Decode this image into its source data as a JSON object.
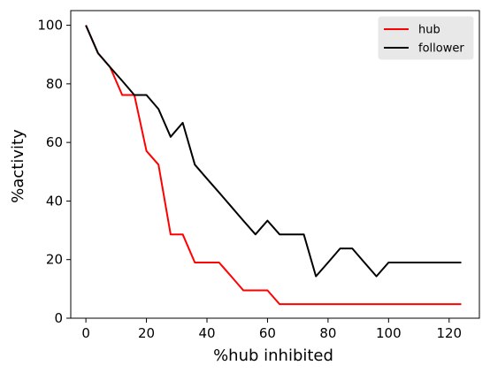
{
  "chart_data": {
    "type": "line",
    "title": "",
    "xlabel": "%hub inhibited",
    "ylabel": "%activity",
    "xlim": [
      -5,
      130
    ],
    "ylim": [
      0,
      105
    ],
    "xticks": [
      0,
      20,
      40,
      60,
      80,
      100,
      120
    ],
    "yticks": [
      0,
      20,
      40,
      60,
      80,
      100
    ],
    "legend_position": "top-right",
    "grid": false,
    "series": [
      {
        "name": "hub",
        "color": "#ff0000",
        "x": [
          0,
          4,
          8,
          12,
          16,
          20,
          24,
          28,
          32,
          36,
          40,
          44,
          48,
          52,
          56,
          60,
          64,
          68,
          72,
          76,
          80,
          84,
          88,
          92,
          96,
          100,
          104,
          108,
          112,
          116,
          120,
          124
        ],
        "y": [
          100,
          90.5,
          85.7,
          76.2,
          76.2,
          57.1,
          52.4,
          28.6,
          28.6,
          19,
          19,
          19,
          14.3,
          9.5,
          9.5,
          9.5,
          4.8,
          4.8,
          4.8,
          4.8,
          4.8,
          4.8,
          4.8,
          4.8,
          4.8,
          4.8,
          4.8,
          4.8,
          4.8,
          4.8,
          4.8,
          4.8
        ]
      },
      {
        "name": "follower",
        "color": "#000000",
        "x": [
          0,
          4,
          8,
          12,
          16,
          20,
          24,
          28,
          32,
          36,
          40,
          44,
          48,
          52,
          56,
          60,
          64,
          68,
          72,
          76,
          80,
          84,
          88,
          92,
          96,
          100,
          104,
          108,
          112,
          116,
          120,
          124
        ],
        "y": [
          100,
          90.5,
          85.7,
          81,
          76.2,
          76.2,
          71.4,
          61.9,
          66.7,
          52.4,
          47.6,
          42.9,
          38.1,
          33.3,
          28.6,
          33.3,
          28.6,
          28.6,
          28.6,
          14.3,
          19,
          23.8,
          23.8,
          19,
          14.3,
          19,
          19,
          19,
          19,
          19,
          19,
          19
        ]
      }
    ]
  }
}
